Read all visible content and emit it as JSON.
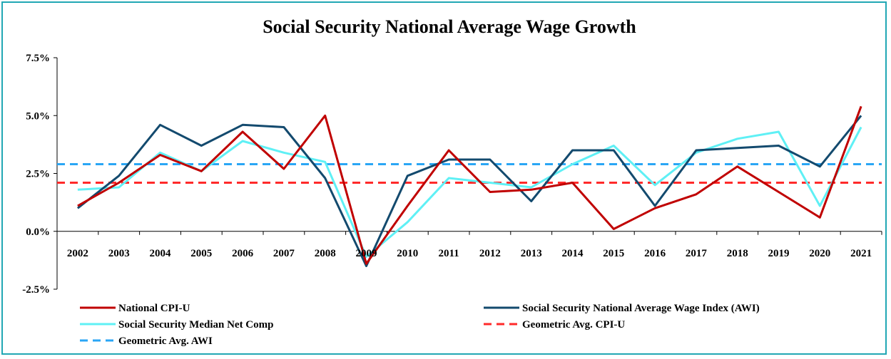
{
  "chart_data": {
    "type": "line",
    "title": "Social Security National Average Wage Growth",
    "xlabel": "",
    "ylabel": "",
    "ylim": [
      -2.5,
      7.5
    ],
    "yticks": [
      7.5,
      5.0,
      2.5,
      0.0,
      -2.5
    ],
    "ytick_labels": [
      "7.5%",
      "5.0%",
      "2.5%",
      "0.0%",
      "-2.5%"
    ],
    "categories": [
      "2002",
      "2003",
      "2004",
      "2005",
      "2006",
      "2007",
      "2008",
      "2009",
      "2010",
      "2011",
      "2012",
      "2013",
      "2014",
      "2015",
      "2016",
      "2017",
      "2018",
      "2019",
      "2020",
      "2021"
    ],
    "series": [
      {
        "name": "National CPI-U",
        "style": "solid",
        "color": "#c00000",
        "values": [
          1.1,
          2.1,
          3.3,
          2.6,
          4.3,
          2.7,
          5.0,
          -1.4,
          1.1,
          3.5,
          1.7,
          1.8,
          2.1,
          0.1,
          1.0,
          1.6,
          2.8,
          1.7,
          0.6,
          5.4
        ]
      },
      {
        "name": "Social Security National Average Wage Index (AWI)",
        "style": "solid",
        "color": "#134a6e",
        "values": [
          1.0,
          2.4,
          4.6,
          3.7,
          4.6,
          4.5,
          2.3,
          -1.5,
          2.4,
          3.1,
          3.1,
          1.3,
          3.5,
          3.5,
          1.1,
          3.5,
          3.6,
          3.7,
          2.8,
          5.0
        ]
      },
      {
        "name": "Social Security Median Net Comp",
        "style": "solid",
        "color": "#5ff0f5",
        "values": [
          1.8,
          1.9,
          3.4,
          2.6,
          3.9,
          3.4,
          3.0,
          -1.1,
          0.4,
          2.3,
          2.1,
          1.9,
          2.9,
          3.7,
          2.0,
          3.4,
          4.0,
          4.3,
          1.1,
          4.5
        ]
      },
      {
        "name": "Geometric Avg. CPI-U",
        "style": "dashed",
        "color": "#ff2a2a",
        "values": [
          2.1,
          2.1,
          2.1,
          2.1,
          2.1,
          2.1,
          2.1,
          2.1,
          2.1,
          2.1,
          2.1,
          2.1,
          2.1,
          2.1,
          2.1,
          2.1,
          2.1,
          2.1,
          2.1,
          2.1
        ]
      },
      {
        "name": "Geometric Avg. AWI",
        "style": "dashed",
        "color": "#2aa6f5",
        "values": [
          2.9,
          2.9,
          2.9,
          2.9,
          2.9,
          2.9,
          2.9,
          2.9,
          2.9,
          2.9,
          2.9,
          2.9,
          2.9,
          2.9,
          2.9,
          2.9,
          2.9,
          2.9,
          2.9,
          2.9
        ]
      }
    ],
    "legend": {
      "placement": "bottom",
      "order": [
        0,
        1,
        2,
        3,
        4
      ]
    },
    "grid": false
  }
}
